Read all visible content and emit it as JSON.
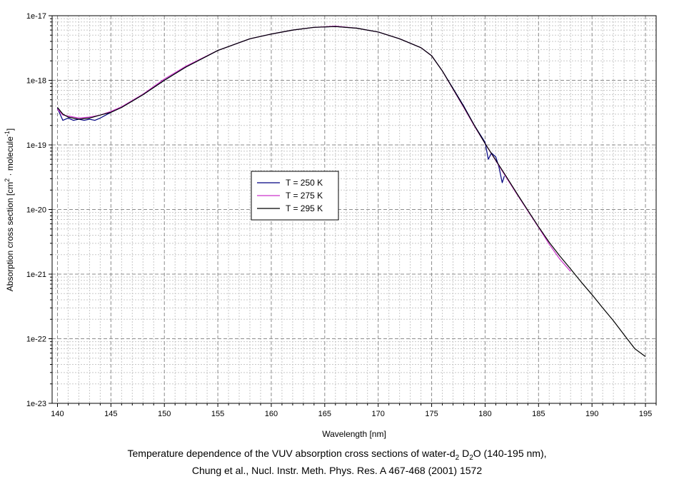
{
  "caption": {
    "line1": {
      "pre": "Temperature dependence of the VUV absorption cross sections of water-d",
      "sub1": "2",
      "mid": " D",
      "sub2": "2",
      "post": "O (140-195 nm),"
    },
    "line2": "Chung et al., Nucl. Instr. Meth. Phys. Res. A 467-468 (2001) 1572"
  },
  "chart_data": {
    "type": "line",
    "title": "",
    "xlabel": "Wavelength [nm]",
    "ylabel": {
      "pre": "Absorption cross section [cm",
      "sup1": "2",
      "mid": " · molecule",
      "sup2": "-1",
      "post": "]"
    },
    "xlim": [
      139.5,
      196
    ],
    "ylim": [
      1e-23,
      1e-17
    ],
    "yscale": "log",
    "xticks": [
      140,
      145,
      150,
      155,
      160,
      165,
      170,
      175,
      180,
      185,
      190,
      195
    ],
    "yticks": [
      1e-23,
      1e-22,
      1e-21,
      1e-20,
      1e-19,
      1e-18,
      1e-17
    ],
    "ytick_labels": [
      "1e-23",
      "1e-22",
      "1e-21",
      "1e-20",
      "1e-19",
      "1e-18",
      "1e-17"
    ],
    "grid": true,
    "legend_position": "center-left",
    "series": [
      {
        "name": "T = 250 K",
        "color": "#000080",
        "x": [
          140,
          140.5,
          141,
          141.5,
          142,
          142.5,
          143,
          143.5,
          144,
          145,
          146,
          148,
          150,
          152,
          155,
          158,
          160,
          162,
          164,
          166,
          168,
          170,
          172,
          174,
          175,
          176,
          177,
          178,
          179,
          180,
          180.3,
          180.6,
          181,
          181.3,
          181.6,
          181.8
        ],
        "y": [
          3.7e-19,
          2.4e-19,
          2.6e-19,
          2.4e-19,
          2.5e-19,
          2.4e-19,
          2.5e-19,
          2.4e-19,
          2.6e-19,
          3.2e-19,
          3.8e-19,
          6e-19,
          1e-18,
          1.6e-18,
          2.9e-18,
          4.4e-18,
          5.2e-18,
          6e-18,
          6.6e-18,
          6.8e-18,
          6.4e-18,
          5.6e-18,
          4.4e-18,
          3.2e-18,
          2.4e-18,
          1.4e-18,
          7.5e-19,
          4e-19,
          2e-19,
          1.1e-19,
          6e-20,
          7.5e-20,
          6.5e-20,
          4.5e-20,
          2.6e-20,
          3.3e-20
        ]
      },
      {
        "name": "T = 275 K",
        "color": "#cc33cc",
        "x": [
          140,
          140.5,
          141,
          142,
          143,
          144,
          145,
          146,
          148,
          150,
          152,
          155,
          158,
          160,
          162,
          164,
          166,
          168,
          170,
          172,
          174,
          175,
          176,
          177,
          178,
          179,
          180,
          181,
          182,
          183,
          184,
          185,
          186,
          187,
          188
        ],
        "y": [
          3.6e-19,
          2.9e-19,
          2.8e-19,
          2.6e-19,
          2.7e-19,
          2.9e-19,
          3.3e-19,
          3.9e-19,
          6.1e-19,
          1.05e-18,
          1.65e-18,
          2.9e-18,
          4.4e-18,
          5.2e-18,
          6e-18,
          6.6e-18,
          6.9e-18,
          6.4e-18,
          5.6e-18,
          4.4e-18,
          3.2e-18,
          2.4e-18,
          1.4e-18,
          7.3e-19,
          3.8e-19,
          1.95e-19,
          1.05e-19,
          5.7e-20,
          3.1e-20,
          1.7e-20,
          9.5e-21,
          5.3e-21,
          2.9e-21,
          1.7e-21,
          1.1e-21
        ]
      },
      {
        "name": "T = 295 K",
        "color": "#000000",
        "x": [
          140,
          140.5,
          141,
          142,
          143,
          144,
          145,
          146,
          148,
          150,
          152,
          155,
          158,
          160,
          162,
          164,
          166,
          168,
          170,
          172,
          174,
          175,
          176,
          177,
          178,
          179,
          180,
          181,
          182,
          183,
          184,
          185,
          186,
          187,
          188,
          189,
          190,
          191,
          192,
          193,
          194,
          195
        ],
        "y": [
          3.8e-19,
          3e-19,
          2.7e-19,
          2.5e-19,
          2.6e-19,
          2.9e-19,
          3.2e-19,
          3.8e-19,
          6e-19,
          1e-18,
          1.6e-18,
          2.9e-18,
          4.4e-18,
          5.2e-18,
          6e-18,
          6.6e-18,
          6.8e-18,
          6.4e-18,
          5.6e-18,
          4.4e-18,
          3.2e-18,
          2.4e-18,
          1.4e-18,
          7.4e-19,
          3.9e-19,
          2e-19,
          1.05e-19,
          5.8e-20,
          3.2e-20,
          1.75e-20,
          9.7e-21,
          5.4e-21,
          3.1e-21,
          1.9e-21,
          1.2e-21,
          7.5e-22,
          4.8e-22,
          3e-22,
          1.9e-22,
          1.15e-22,
          7e-23,
          5.3e-23
        ]
      }
    ]
  }
}
